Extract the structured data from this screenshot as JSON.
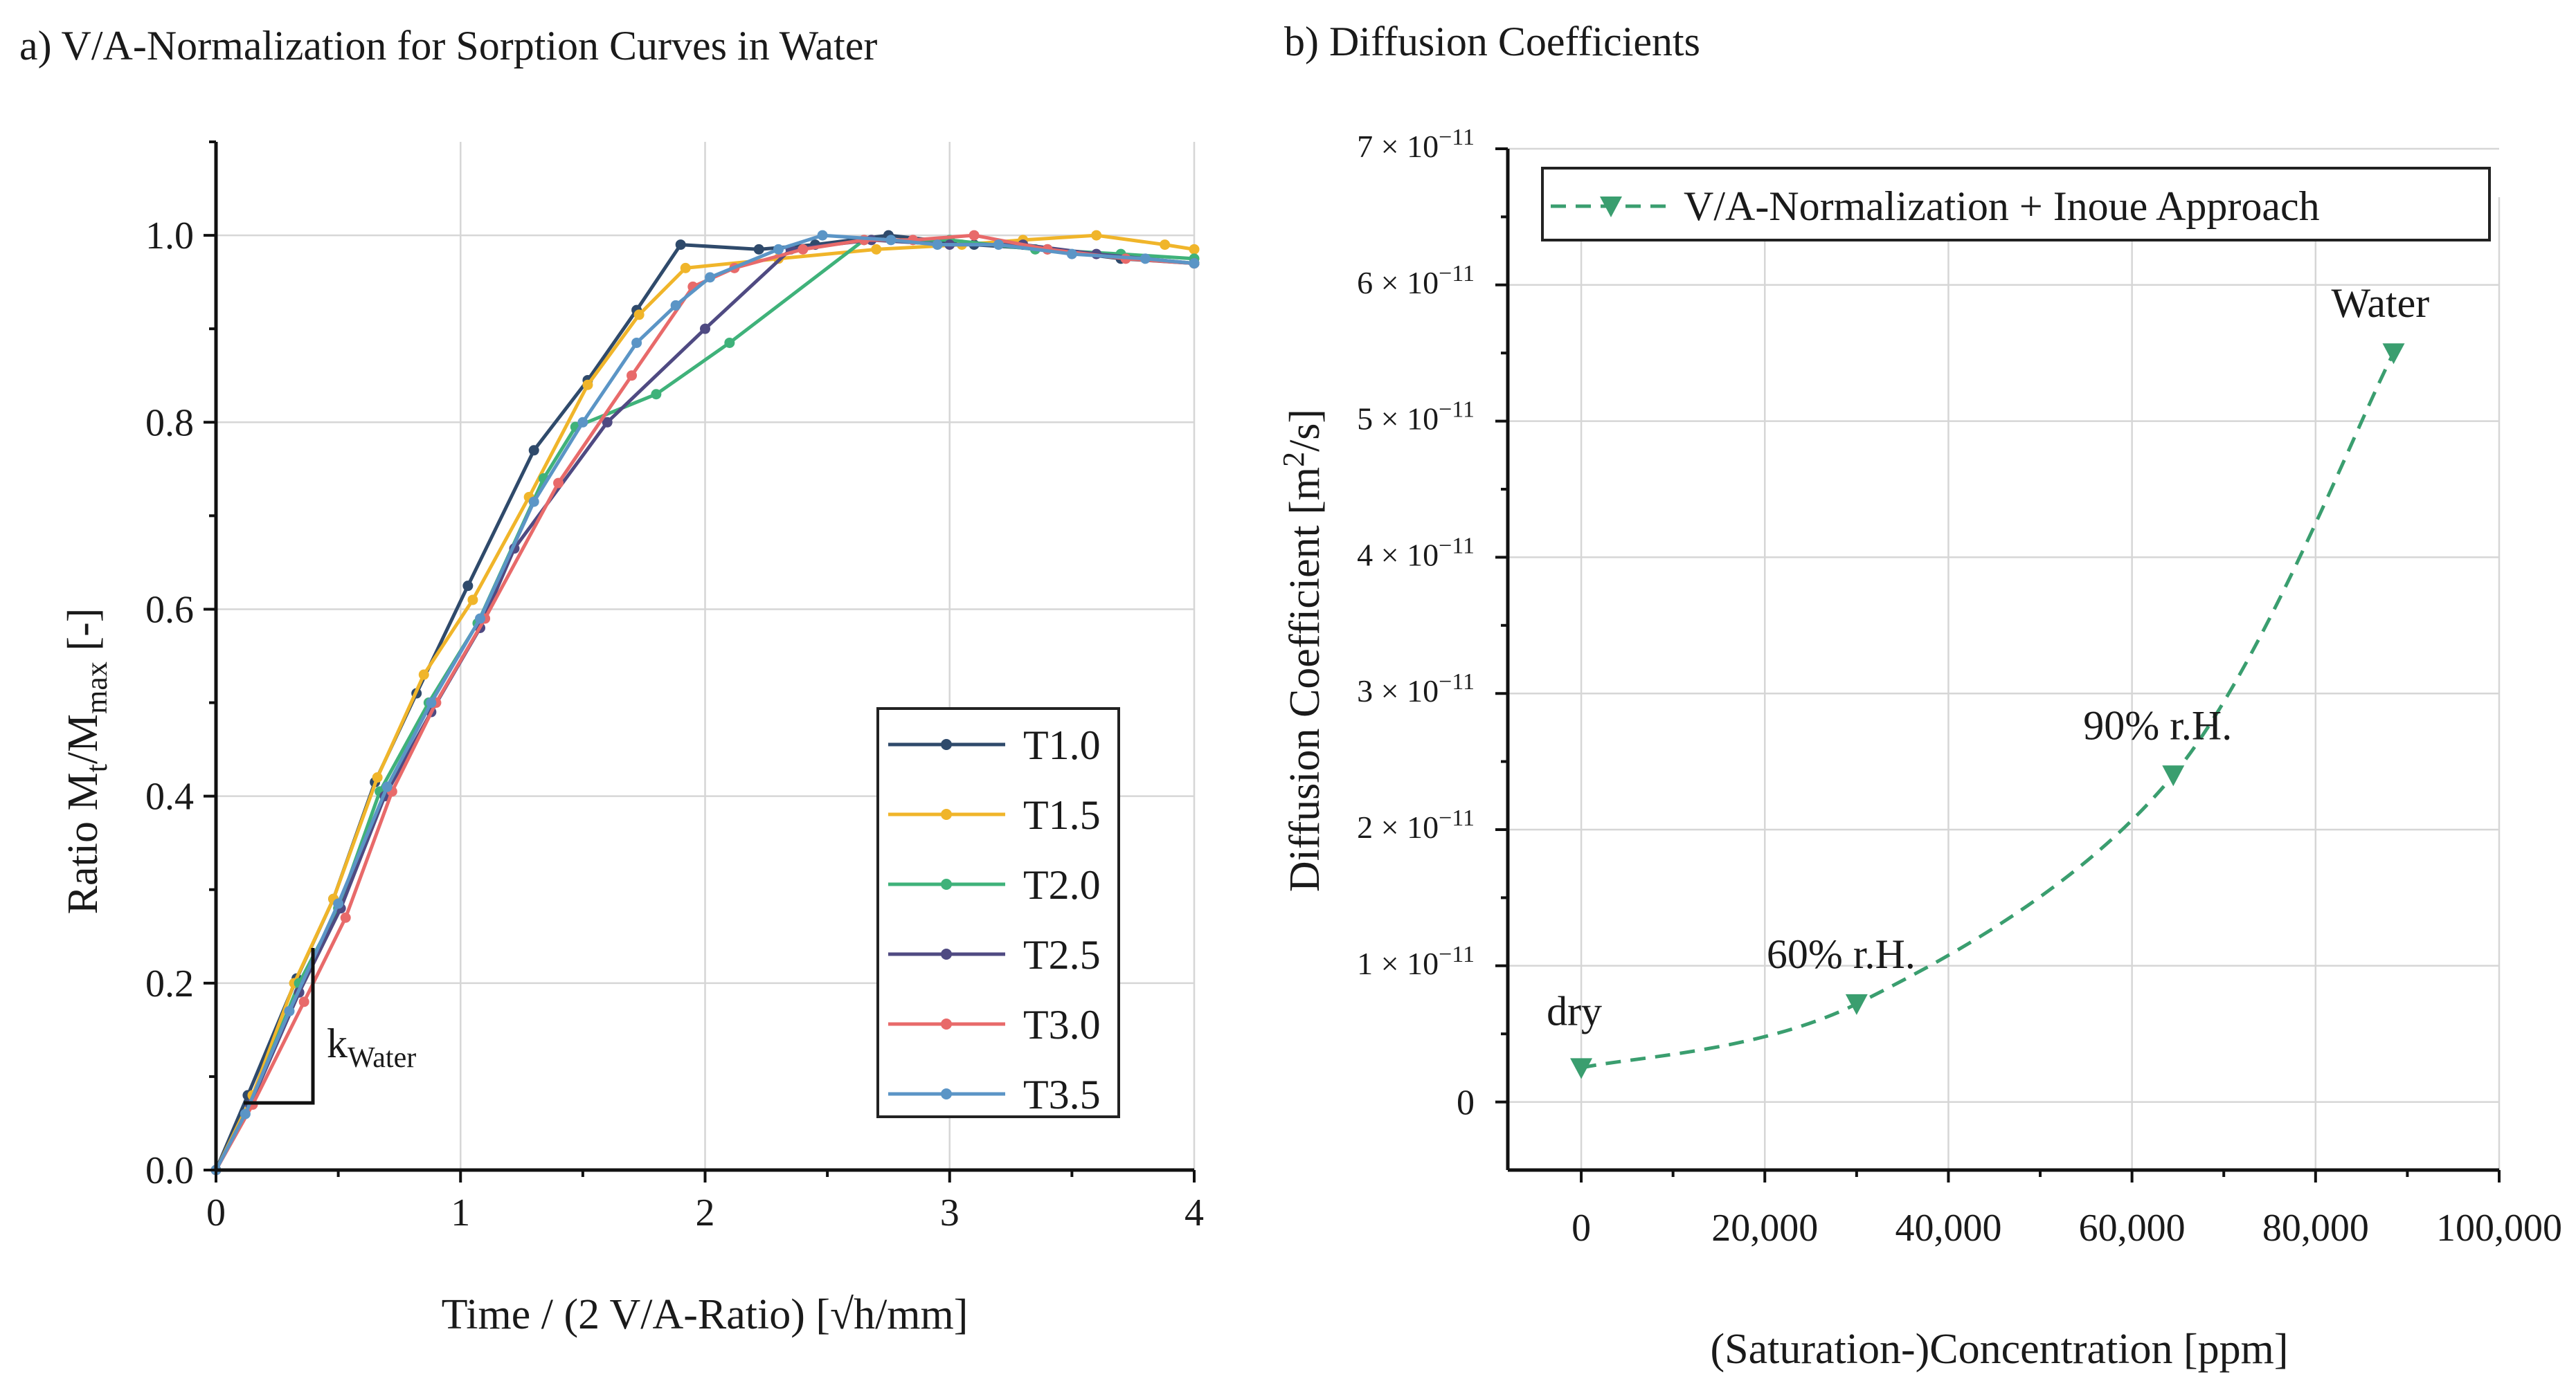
{
  "chart_data": [
    {
      "type": "line",
      "title": "a) V/A-Normalization for Sorption Curves in Water",
      "xlabel": "Time / (2 V/A-Ratio) [√h/mm]",
      "ylabel_parts": {
        "pre": "Ratio M",
        "sub1": "t",
        "mid": "/M",
        "sub2": "max",
        "post": " [-]"
      },
      "xlim": [
        0,
        4
      ],
      "ylim": [
        0,
        1.1
      ],
      "x_ticks": [
        "0",
        "1",
        "2",
        "3",
        "4"
      ],
      "y_ticks": [
        "0.0",
        "0.2",
        "0.4",
        "0.6",
        "0.8",
        "1.0"
      ],
      "grid": true,
      "legend_position": "bottom-right",
      "annotation": {
        "text": "k",
        "sub": "Water"
      },
      "series": [
        {
          "name": "T1.0",
          "color": "#2f4a6b",
          "x": [
            0,
            0.13,
            0.33,
            0.48,
            0.65,
            0.82,
            1.03,
            1.3,
            1.52,
            1.72,
            1.9,
            2.22,
            2.45,
            2.75,
            3.1,
            3.4,
            3.7,
            4.0
          ],
          "y": [
            0,
            0.08,
            0.205,
            0.29,
            0.415,
            0.51,
            0.625,
            0.77,
            0.845,
            0.92,
            0.99,
            0.985,
            0.99,
            1.0,
            0.99,
            0.985,
            0.975,
            0.97
          ]
        },
        {
          "name": "T1.5",
          "color": "#f0b52a",
          "x": [
            0,
            0.15,
            0.32,
            0.48,
            0.66,
            0.85,
            1.05,
            1.28,
            1.52,
            1.73,
            1.92,
            2.3,
            2.7,
            3.05,
            3.3,
            3.6,
            3.88,
            4.0
          ],
          "y": [
            0,
            0.08,
            0.2,
            0.29,
            0.42,
            0.53,
            0.61,
            0.72,
            0.84,
            0.915,
            0.965,
            0.975,
            0.985,
            0.99,
            0.995,
            1.0,
            0.99,
            0.985
          ]
        },
        {
          "name": "T2.0",
          "color": "#3fb27a",
          "x": [
            0,
            0.14,
            0.34,
            0.5,
            0.67,
            0.87,
            1.07,
            1.34,
            1.47,
            1.8,
            2.1,
            2.65,
            3.0,
            3.35,
            3.7,
            4.0
          ],
          "y": [
            0,
            0.07,
            0.2,
            0.28,
            0.405,
            0.5,
            0.585,
            0.74,
            0.795,
            0.83,
            0.885,
            0.995,
            0.995,
            0.985,
            0.98,
            0.975
          ]
        },
        {
          "name": "T2.5",
          "color": "#4f4a82",
          "x": [
            0,
            0.14,
            0.34,
            0.51,
            0.69,
            0.88,
            1.08,
            1.22,
            1.6,
            2.0,
            2.35,
            2.68,
            3.0,
            3.3,
            3.6,
            4.0
          ],
          "y": [
            0,
            0.07,
            0.19,
            0.28,
            0.4,
            0.49,
            0.58,
            0.665,
            0.8,
            0.9,
            0.985,
            0.995,
            0.99,
            0.99,
            0.98,
            0.97
          ]
        },
        {
          "name": "T3.0",
          "color": "#e86a6a",
          "x": [
            0,
            0.15,
            0.36,
            0.53,
            0.72,
            0.9,
            1.1,
            1.4,
            1.7,
            1.95,
            2.12,
            2.4,
            2.65,
            2.85,
            3.1,
            3.4,
            3.72,
            4.0
          ],
          "y": [
            0,
            0.07,
            0.18,
            0.27,
            0.405,
            0.5,
            0.59,
            0.735,
            0.85,
            0.945,
            0.965,
            0.985,
            0.995,
            0.995,
            1.0,
            0.985,
            0.975,
            0.97
          ]
        },
        {
          "name": "T3.5",
          "color": "#5b95c6",
          "x": [
            0,
            0.12,
            0.3,
            0.5,
            0.7,
            0.88,
            1.08,
            1.3,
            1.5,
            1.72,
            1.88,
            2.02,
            2.3,
            2.48,
            2.76,
            2.95,
            3.2,
            3.5,
            3.8,
            4.0
          ],
          "y": [
            0,
            0.06,
            0.17,
            0.285,
            0.41,
            0.5,
            0.59,
            0.715,
            0.8,
            0.885,
            0.925,
            0.955,
            0.985,
            1.0,
            0.995,
            0.99,
            0.99,
            0.98,
            0.975,
            0.97
          ]
        }
      ]
    },
    {
      "type": "line",
      "title": "b) Diffusion Coefficients",
      "xlabel": "(Saturation-)Concentration [ppm]",
      "ylabel_parts": {
        "pre": "Diffusion Coefficient [m",
        "sup": "2",
        "post": "/s]"
      },
      "xlim": [
        -8000,
        100000
      ],
      "ylim": [
        -5e-12,
        7e-11
      ],
      "x_ticks": [
        "0",
        "20,000",
        "40,000",
        "60,000",
        "80,000",
        "100,000"
      ],
      "y_ticks": [
        {
          "mantissa": "",
          "exp": ""
        },
        {
          "mantissa": "1 × 10",
          "exp": "−11"
        },
        {
          "mantissa": "2 × 10",
          "exp": "−11"
        },
        {
          "mantissa": "3 × 10",
          "exp": "−11"
        },
        {
          "mantissa": "4 × 10",
          "exp": "−11"
        },
        {
          "mantissa": "5 × 10",
          "exp": "−11"
        },
        {
          "mantissa": "6 × 10",
          "exp": "−11"
        },
        {
          "mantissa": "7 × 10",
          "exp": "−11"
        }
      ],
      "y_zero_label": "0",
      "grid": true,
      "legend_position": "top-left",
      "series": [
        {
          "name": "V/A-Normalization + Inoue Approach",
          "color": "#3a9e6f",
          "x": [
            0,
            30000,
            64500,
            88500
          ],
          "y": [
            2.5e-12,
            7.2e-12,
            2.4e-11,
            5.5e-11
          ],
          "point_labels": [
            "dry",
            "60% r.H.",
            "90% r.H.",
            "Water"
          ]
        }
      ]
    }
  ]
}
